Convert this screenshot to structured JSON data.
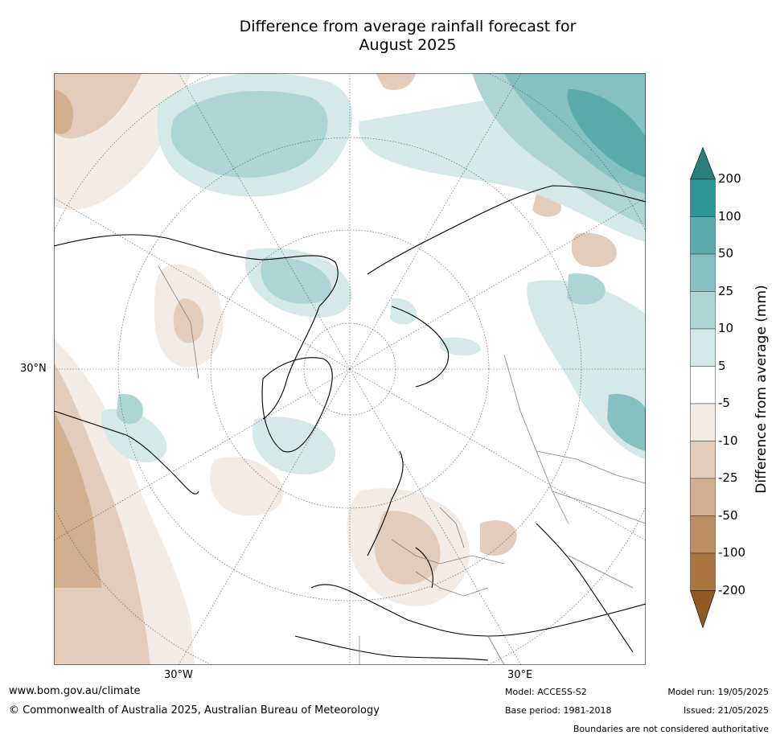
{
  "title": {
    "line1": "Difference from average rainfall forecast for",
    "line2": "August 2025"
  },
  "map": {
    "lat_labels": [
      "30°N"
    ],
    "lon_labels": [
      "30°W",
      "30°E"
    ],
    "colors": {
      "land_outline": "#000000",
      "border": "#808080",
      "graticule": "#555555"
    }
  },
  "colorbar": {
    "label": "Difference from average (mm)",
    "ticks": [
      "200",
      "100",
      "50",
      "25",
      "10",
      "5",
      "-5",
      "-10",
      "-25",
      "-50",
      "-100",
      "-200"
    ],
    "colors": [
      "#2a7f7c",
      "#2e9795",
      "#5aabaa",
      "#85c1c0",
      "#acd5d4",
      "#d4e9e8",
      "#ffffff",
      "#f2ebe6",
      "#e2cdbd",
      "#d0b091",
      "#bd8d62",
      "#ab7540",
      "#905a22"
    ]
  },
  "footer": {
    "website": "www.bom.gov.au/climate",
    "copyright": "© Commonwealth of Australia 2025, Australian Bureau of Meteorology",
    "model": "Model: ACCESS-S2",
    "base_period": "Base period: 1981-2018",
    "model_run": "Model run: 19/05/2025",
    "issued": "Issued: 21/05/2025",
    "disclaimer": "Boundaries are not considered authoritative"
  }
}
